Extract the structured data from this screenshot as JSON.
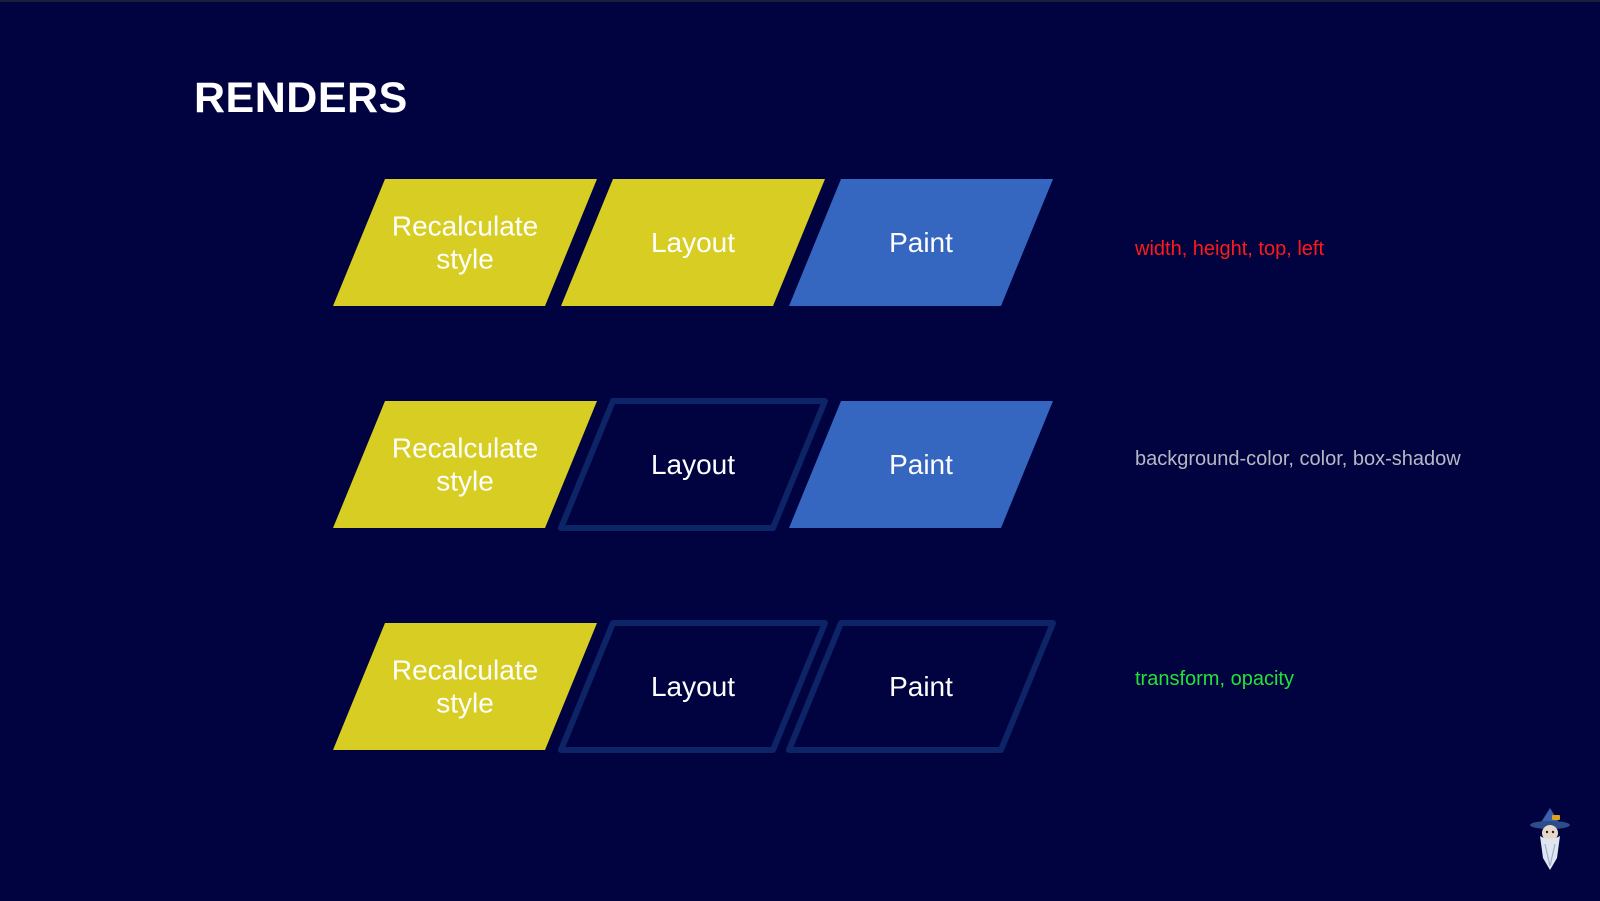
{
  "slide": {
    "title": "RENDERS"
  },
  "colors": {
    "background": "#000340",
    "active_yellow": "#d8cd22",
    "active_blue": "#3566c0",
    "inactive_outline": "#0d2466",
    "label_white": "#ffffff"
  },
  "rows": [
    {
      "stages": [
        {
          "lines": [
            "Recalculate",
            "style"
          ],
          "state": "yellow"
        },
        {
          "lines": [
            "Layout"
          ],
          "state": "yellow"
        },
        {
          "lines": [
            "Paint"
          ],
          "state": "blue"
        }
      ],
      "note": {
        "text": "width, height, top, left",
        "color": "#ff1a1a"
      }
    },
    {
      "stages": [
        {
          "lines": [
            "Recalculate",
            "style"
          ],
          "state": "yellow"
        },
        {
          "lines": [
            "Layout"
          ],
          "state": "outline"
        },
        {
          "lines": [
            "Paint"
          ],
          "state": "blue"
        }
      ],
      "note": {
        "text": "background-color, color, box-shadow",
        "color": "#b8b8c4"
      }
    },
    {
      "stages": [
        {
          "lines": [
            "Recalculate",
            "style"
          ],
          "state": "yellow"
        },
        {
          "lines": [
            "Layout"
          ],
          "state": "outline"
        },
        {
          "lines": [
            "Paint"
          ],
          "state": "outline"
        }
      ],
      "note": {
        "text": "transform, opacity",
        "color": "#22e23a"
      }
    }
  ],
  "mascot": {
    "icon": "wizard-mascot-icon"
  }
}
